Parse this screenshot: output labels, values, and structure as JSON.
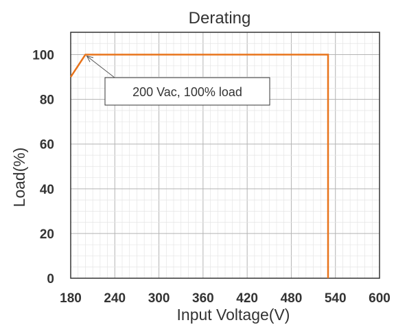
{
  "chart_data": {
    "type": "line",
    "title": "Derating",
    "xlabel": "Input Voltage(V)",
    "ylabel": "Load(%)",
    "xlim": [
      180,
      600
    ],
    "ylim": [
      0,
      110
    ],
    "x_ticks": [
      180,
      240,
      300,
      360,
      420,
      480,
      540,
      600
    ],
    "x_tick_labels": [
      "180",
      "240",
      "300",
      "360",
      "420",
      "480",
      "540",
      "600"
    ],
    "y_ticks": [
      0,
      20,
      40,
      60,
      80,
      100
    ],
    "y_tick_labels": [
      "0",
      "20",
      "40",
      "60",
      "80",
      "100"
    ],
    "grid": true,
    "series": [
      {
        "x": [
          180,
          200,
          530,
          530
        ],
        "y": [
          90,
          100,
          100,
          0
        ],
        "color": "#E8731A"
      }
    ],
    "annotations": [
      {
        "text": "200 Vac, 100% load",
        "point": [
          200,
          100
        ]
      }
    ]
  }
}
